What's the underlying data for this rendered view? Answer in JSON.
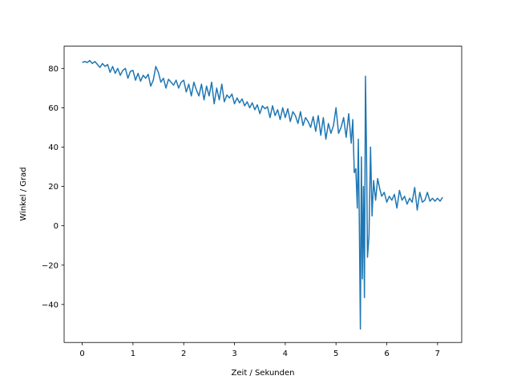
{
  "chart_data": {
    "type": "line",
    "xlabel": "Zeit / Sekunden",
    "ylabel": "Winkel / Grad",
    "xlim": [
      -0.356,
      7.476
    ],
    "ylim": [
      -59.3,
      91.3
    ],
    "xticks": [
      0,
      1,
      2,
      3,
      4,
      5,
      6,
      7
    ],
    "yticks": [
      {
        "value": -40,
        "label": "−40"
      },
      {
        "value": -20,
        "label": "−20"
      },
      0,
      20,
      40,
      60,
      80
    ],
    "series": [
      {
        "color": "#1f77b4",
        "x": [
          0.0,
          0.05,
          0.1,
          0.15,
          0.2,
          0.25,
          0.3,
          0.35,
          0.4,
          0.45,
          0.5,
          0.55,
          0.6,
          0.65,
          0.7,
          0.75,
          0.8,
          0.85,
          0.9,
          0.95,
          1.0,
          1.05,
          1.1,
          1.15,
          1.2,
          1.25,
          1.3,
          1.35,
          1.4,
          1.45,
          1.5,
          1.55,
          1.6,
          1.65,
          1.7,
          1.75,
          1.8,
          1.85,
          1.9,
          1.95,
          2.0,
          2.05,
          2.1,
          2.15,
          2.2,
          2.25,
          2.3,
          2.35,
          2.4,
          2.45,
          2.5,
          2.55,
          2.6,
          2.65,
          2.7,
          2.75,
          2.8,
          2.85,
          2.9,
          2.95,
          3.0,
          3.05,
          3.1,
          3.15,
          3.2,
          3.25,
          3.3,
          3.35,
          3.4,
          3.45,
          3.5,
          3.55,
          3.6,
          3.65,
          3.7,
          3.75,
          3.8,
          3.85,
          3.9,
          3.95,
          4.0,
          4.05,
          4.1,
          4.15,
          4.2,
          4.25,
          4.3,
          4.35,
          4.4,
          4.45,
          4.5,
          4.55,
          4.6,
          4.65,
          4.7,
          4.75,
          4.8,
          4.85,
          4.9,
          4.95,
          5.0,
          5.05,
          5.1,
          5.15,
          5.2,
          5.25,
          5.3,
          5.33,
          5.36,
          5.39,
          5.42,
          5.44,
          5.46,
          5.48,
          5.5,
          5.52,
          5.54,
          5.56,
          5.58,
          5.6,
          5.62,
          5.65,
          5.68,
          5.71,
          5.74,
          5.78,
          5.82,
          5.86,
          5.9,
          5.95,
          6.0,
          6.05,
          6.1,
          6.15,
          6.2,
          6.25,
          6.3,
          6.35,
          6.4,
          6.45,
          6.5,
          6.55,
          6.6,
          6.65,
          6.7,
          6.75,
          6.8,
          6.85,
          6.9,
          6.95,
          7.0,
          7.05,
          7.1
        ],
        "values": [
          83,
          83.5,
          83,
          84,
          82.5,
          83.5,
          82,
          80.5,
          82.5,
          81,
          82,
          78,
          81,
          77.5,
          80,
          76.5,
          79,
          80,
          75,
          78.5,
          79,
          74,
          77.5,
          73.5,
          76.5,
          75,
          77,
          71,
          74,
          81,
          78,
          73,
          75,
          70,
          74.5,
          73,
          71.5,
          74,
          70,
          73,
          74,
          68,
          72,
          66,
          73,
          69,
          66,
          72,
          64,
          71,
          66,
          73,
          62,
          70,
          64,
          72,
          63,
          66.5,
          65,
          67,
          62,
          65,
          62.5,
          64.5,
          61,
          63,
          60,
          62.5,
          59,
          61.5,
          57,
          61,
          59.5,
          60.5,
          55,
          61,
          56,
          59,
          54,
          60,
          55,
          59.5,
          53,
          58,
          56,
          52,
          58,
          51,
          55,
          53,
          50,
          55.5,
          48,
          56,
          46,
          55,
          44,
          52,
          47,
          51,
          60,
          47,
          50,
          55,
          45,
          57,
          42,
          54,
          27,
          29,
          9,
          44,
          0,
          -52.5,
          35,
          -27,
          20,
          -36.5,
          76,
          40,
          -16,
          -5,
          40,
          5,
          23,
          13,
          24,
          19,
          15,
          17,
          12,
          15,
          13,
          16,
          9,
          18,
          13,
          15,
          11,
          14,
          12,
          19.5,
          8,
          17,
          12,
          13,
          17,
          12.5,
          14,
          12.5,
          14,
          12.5,
          14.5
        ]
      }
    ]
  }
}
